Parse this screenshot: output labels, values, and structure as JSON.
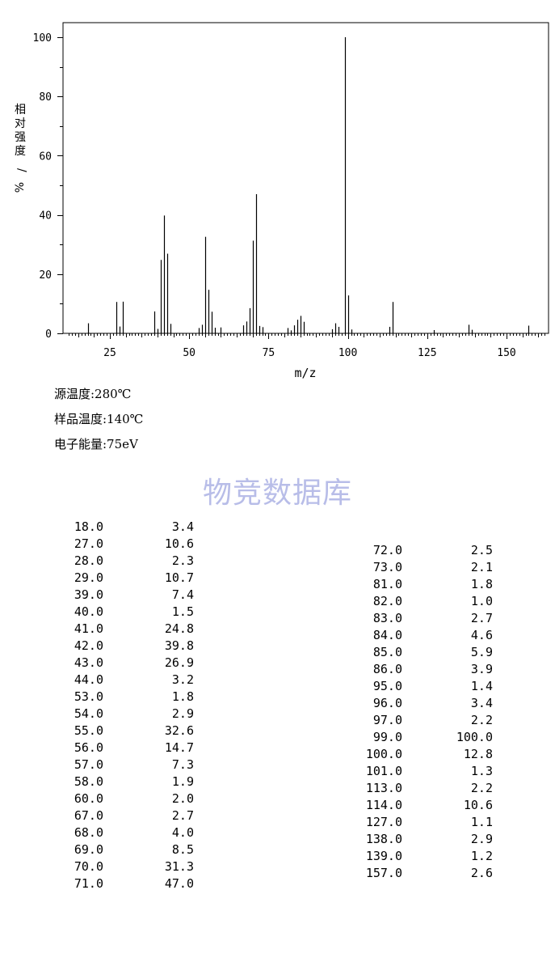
{
  "chart_data": {
    "type": "bar",
    "xlabel": "m/z",
    "ylabel": "相对强度/%",
    "xlim": [
      10,
      163
    ],
    "ylim": [
      0,
      105
    ],
    "xticks": [
      25,
      50,
      75,
      100,
      125,
      150
    ],
    "yticks": [
      0,
      20,
      40,
      60,
      80,
      100
    ],
    "grid": false,
    "x": [
      18,
      27,
      28,
      29,
      39,
      40,
      41,
      42,
      43,
      44,
      53,
      54,
      55,
      56,
      57,
      58,
      60,
      67,
      68,
      69,
      70,
      71,
      72,
      73,
      81,
      82,
      83,
      84,
      85,
      86,
      95,
      96,
      97,
      99,
      100,
      101,
      113,
      114,
      127,
      138,
      139,
      157
    ],
    "values": [
      3.4,
      10.6,
      2.3,
      10.7,
      7.4,
      1.5,
      24.8,
      39.8,
      26.9,
      3.2,
      1.8,
      2.9,
      32.6,
      14.7,
      7.3,
      1.9,
      2.0,
      2.7,
      4.0,
      8.5,
      31.3,
      47.0,
      2.5,
      2.1,
      1.8,
      1.0,
      2.7,
      4.6,
      5.9,
      3.9,
      1.4,
      3.4,
      2.2,
      100.0,
      12.8,
      1.3,
      2.2,
      10.6,
      1.1,
      2.9,
      1.2,
      2.6
    ]
  },
  "conditions": {
    "source_temp": "源温度:280℃",
    "sample_temp": "样品温度:140℃",
    "electron_energy": "电子能量:75eV"
  },
  "watermark": "物竞数据库",
  "peak_table": {
    "left": [
      [
        "18.0",
        "3.4"
      ],
      [
        "27.0",
        "10.6"
      ],
      [
        "28.0",
        "2.3"
      ],
      [
        "29.0",
        "10.7"
      ],
      [
        "39.0",
        "7.4"
      ],
      [
        "40.0",
        "1.5"
      ],
      [
        "41.0",
        "24.8"
      ],
      [
        "42.0",
        "39.8"
      ],
      [
        "43.0",
        "26.9"
      ],
      [
        "44.0",
        "3.2"
      ],
      [
        "53.0",
        "1.8"
      ],
      [
        "54.0",
        "2.9"
      ],
      [
        "55.0",
        "32.6"
      ],
      [
        "56.0",
        "14.7"
      ],
      [
        "57.0",
        "7.3"
      ],
      [
        "58.0",
        "1.9"
      ],
      [
        "60.0",
        "2.0"
      ],
      [
        "67.0",
        "2.7"
      ],
      [
        "68.0",
        "4.0"
      ],
      [
        "69.0",
        "8.5"
      ],
      [
        "70.0",
        "31.3"
      ],
      [
        "71.0",
        "47.0"
      ]
    ],
    "right": [
      [
        "72.0",
        "2.5"
      ],
      [
        "73.0",
        "2.1"
      ],
      [
        "81.0",
        "1.8"
      ],
      [
        "82.0",
        "1.0"
      ],
      [
        "83.0",
        "2.7"
      ],
      [
        "84.0",
        "4.6"
      ],
      [
        "85.0",
        "5.9"
      ],
      [
        "86.0",
        "3.9"
      ],
      [
        "95.0",
        "1.4"
      ],
      [
        "96.0",
        "3.4"
      ],
      [
        "97.0",
        "2.2"
      ],
      [
        "99.0",
        "100.0"
      ],
      [
        "100.0",
        "12.8"
      ],
      [
        "101.0",
        "1.3"
      ],
      [
        "113.0",
        "2.2"
      ],
      [
        "114.0",
        "10.6"
      ],
      [
        "127.0",
        "1.1"
      ],
      [
        "138.0",
        "2.9"
      ],
      [
        "139.0",
        "1.2"
      ],
      [
        "157.0",
        "2.6"
      ]
    ]
  }
}
